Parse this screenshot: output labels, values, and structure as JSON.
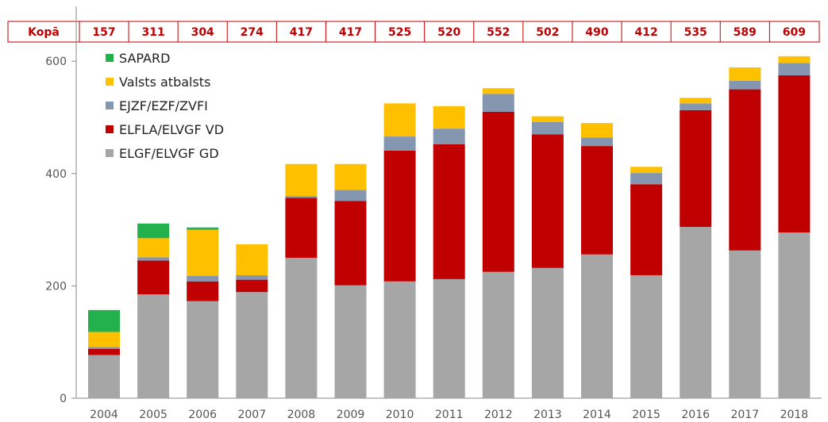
{
  "chart_data": {
    "type": "bar",
    "stacked": true,
    "title": "",
    "xlabel": "",
    "ylabel": "",
    "ylim": [
      0,
      630
    ],
    "yticks": [
      0,
      200,
      400,
      600
    ],
    "grid": false,
    "legend_position": "top-left",
    "totals_row_label": "Kopā",
    "totals": [
      157,
      311,
      304,
      274,
      417,
      417,
      525,
      520,
      552,
      502,
      490,
      412,
      535,
      589,
      609
    ],
    "categories": [
      "2004",
      "2005",
      "2006",
      "2007",
      "2008",
      "2009",
      "2010",
      "2011",
      "2012",
      "2013",
      "2014",
      "2015",
      "2016",
      "2017",
      "2018"
    ],
    "series": [
      {
        "name": "ELGF/ELVGF GD",
        "color": "#a6a6a6",
        "values": [
          77,
          185,
          173,
          189,
          250,
          201,
          208,
          212,
          225,
          232,
          256,
          219,
          305,
          263,
          295
        ]
      },
      {
        "name": "ELFLA/ELVGF VD",
        "color": "#c00000",
        "values": [
          11,
          60,
          35,
          22,
          107,
          150,
          233,
          240,
          285,
          238,
          193,
          162,
          208,
          287,
          280
        ]
      },
      {
        "name": "EJZF/EZF/ZVFI",
        "color": "#8496b0",
        "values": [
          3,
          6,
          10,
          8,
          3,
          20,
          25,
          28,
          32,
          22,
          15,
          20,
          12,
          15,
          22
        ]
      },
      {
        "name": "Valsts atbalsts",
        "color": "#ffc000",
        "values": [
          27,
          34,
          82,
          55,
          57,
          46,
          59,
          40,
          10,
          10,
          26,
          11,
          10,
          24,
          12
        ]
      },
      {
        "name": "SAPARD",
        "color": "#22b14c",
        "values": [
          39,
          26,
          4,
          0,
          0,
          0,
          0,
          0,
          0,
          0,
          0,
          0,
          0,
          0,
          0
        ]
      }
    ],
    "legend_order": [
      "SAPARD",
      "Valsts atbalsts",
      "EJZF/EZF/ZVFI",
      "ELFLA/ELVGF VD",
      "ELGF/ELVGF GD"
    ]
  }
}
